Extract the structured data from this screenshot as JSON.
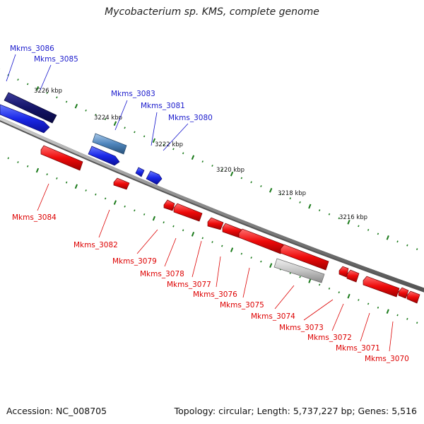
{
  "title": "Mycobacterium sp. KMS, complete genome",
  "footer": {
    "accession": "Accession: NC_008705",
    "summary": "Topology: circular; Length: 5,737,227 bp; Genes: 5,516"
  },
  "colors": {
    "forward": "#1010cc",
    "reverse": "#dd0000",
    "backbone": "#888888",
    "tick": "#1a7a1a"
  },
  "kbp_labels": [
    "3226 kbp",
    "3224 kbp",
    "3222 kbp",
    "3220 kbp",
    "3218 kbp",
    "3216 kbp"
  ],
  "genes_forward": [
    "Mkms_3086",
    "Mkms_3085",
    "Mkms_3083",
    "Mkms_3081",
    "Mkms_3080"
  ],
  "genes_reverse": [
    "Mkms_3084",
    "Mkms_3082",
    "Mkms_3079",
    "Mkms_3078",
    "Mkms_3077",
    "Mkms_3076",
    "Mkms_3075",
    "Mkms_3074",
    "Mkms_3073",
    "Mkms_3072",
    "Mkms_3071",
    "Mkms_3070"
  ]
}
